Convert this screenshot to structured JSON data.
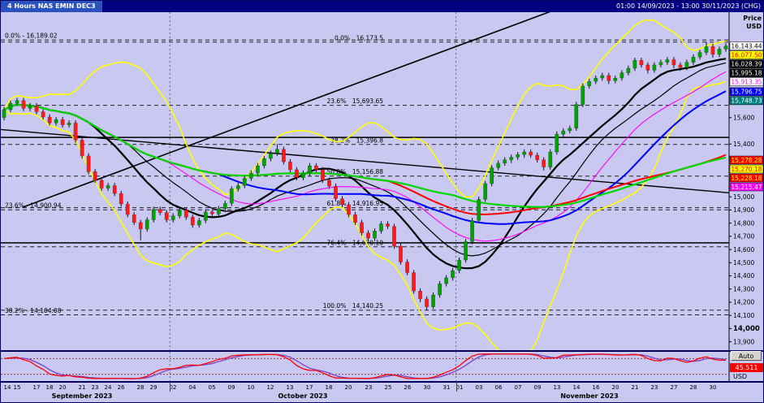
{
  "header": {
    "title": "4 Hours NAS EMIN DEC3",
    "range": "01:00 14/09/2023 - 13:00 30/11/2023 (CHG)"
  },
  "price_axis_title": {
    "line1": "Price",
    "line2": "USD"
  },
  "controls": {
    "auto_label": "Auto",
    "osc_value": "45.511",
    "osc_unit": "USD"
  },
  "colors": {
    "bg": "#c8c8f0",
    "header_bg": "#000080",
    "header_title_bg": "#2a52be",
    "up": "#00a000",
    "down": "#ff1a1a",
    "wick": "#111111",
    "bollinger": "#ffff00",
    "separator": "#000060",
    "axis_line": "#000000",
    "divider": "#666666",
    "fib_line": "#222222",
    "osc_k": "#ff0000",
    "osc_d": "#7744cc",
    "osc_level": "#993333"
  },
  "chart_data": {
    "type": "candlestick",
    "symbol": "NAS EMIN DEC3",
    "timeframe": "4 Hours",
    "price_range": [
      13830,
      16400
    ],
    "bars": [
      [
        15600,
        15680,
        15580,
        15660
      ],
      [
        15660,
        15730,
        15640,
        15710
      ],
      [
        15710,
        15750,
        15690,
        15730
      ],
      [
        15730,
        15750,
        15650,
        15670
      ],
      [
        15670,
        15710,
        15650,
        15690
      ],
      [
        15690,
        15710,
        15625,
        15645
      ],
      [
        15645,
        15665,
        15585,
        15605
      ],
      [
        15605,
        15625,
        15540,
        15560
      ],
      [
        15560,
        15605,
        15540,
        15585
      ],
      [
        15585,
        15605,
        15525,
        15545
      ],
      [
        15545,
        15580,
        15525,
        15560
      ],
      [
        15560,
        15580,
        15410,
        15430
      ],
      [
        15430,
        15450,
        15290,
        15310
      ],
      [
        15310,
        15330,
        15170,
        15190
      ],
      [
        15190,
        15210,
        15105,
        15125
      ],
      [
        15125,
        15145,
        15045,
        15065
      ],
      [
        15065,
        15105,
        15045,
        15085
      ],
      [
        15085,
        15105,
        15005,
        15025
      ],
      [
        15025,
        15045,
        14925,
        14945
      ],
      [
        14945,
        14965,
        14845,
        14865
      ],
      [
        14865,
        14885,
        14785,
        14805
      ],
      [
        14805,
        14825,
        14670,
        14755
      ],
      [
        14755,
        14845,
        14735,
        14825
      ],
      [
        14825,
        14925,
        14805,
        14905
      ],
      [
        14905,
        14925,
        14860,
        14880
      ],
      [
        14880,
        14900,
        14805,
        14825
      ],
      [
        14825,
        14875,
        14805,
        14855
      ],
      [
        14855,
        14920,
        14835,
        14900
      ],
      [
        14900,
        14920,
        14825,
        14845
      ],
      [
        14845,
        14865,
        14765,
        14785
      ],
      [
        14785,
        14840,
        14765,
        14820
      ],
      [
        14820,
        14905,
        14800,
        14885
      ],
      [
        14885,
        14905,
        14850,
        14870
      ],
      [
        14870,
        14930,
        14850,
        14910
      ],
      [
        14910,
        14970,
        14890,
        14950
      ],
      [
        14950,
        15080,
        14930,
        15060
      ],
      [
        15060,
        15105,
        15040,
        15085
      ],
      [
        15085,
        15160,
        15065,
        15140
      ],
      [
        15140,
        15200,
        15120,
        15180
      ],
      [
        15180,
        15255,
        15160,
        15235
      ],
      [
        15235,
        15310,
        15215,
        15290
      ],
      [
        15290,
        15350,
        15270,
        15330
      ],
      [
        15330,
        15400,
        15310,
        15360
      ],
      [
        15360,
        15380,
        15245,
        15265
      ],
      [
        15265,
        15285,
        15185,
        15205
      ],
      [
        15205,
        15225,
        15125,
        15145
      ],
      [
        15145,
        15200,
        15125,
        15180
      ],
      [
        15180,
        15255,
        15160,
        15235
      ],
      [
        15235,
        15255,
        15185,
        15205
      ],
      [
        15205,
        15225,
        15105,
        15125
      ],
      [
        15125,
        15145,
        15060,
        15080
      ],
      [
        15080,
        15100,
        14965,
        14985
      ],
      [
        14985,
        15005,
        14920,
        14940
      ],
      [
        14940,
        14960,
        14845,
        14865
      ],
      [
        14865,
        14885,
        14785,
        14805
      ],
      [
        14805,
        14825,
        14705,
        14725
      ],
      [
        14725,
        14745,
        14665,
        14685
      ],
      [
        14685,
        14760,
        14665,
        14740
      ],
      [
        14740,
        14815,
        14720,
        14795
      ],
      [
        14795,
        14815,
        14755,
        14775
      ],
      [
        14775,
        14795,
        14605,
        14625
      ],
      [
        14625,
        14645,
        14485,
        14505
      ],
      [
        14505,
        14525,
        14405,
        14425
      ],
      [
        14425,
        14445,
        14265,
        14285
      ],
      [
        14285,
        14305,
        14200,
        14225
      ],
      [
        14225,
        14245,
        14140.25,
        14165
      ],
      [
        14165,
        14275,
        14150,
        14255
      ],
      [
        14255,
        14360,
        14235,
        14340
      ],
      [
        14340,
        14405,
        14320,
        14385
      ],
      [
        14385,
        14460,
        14365,
        14440
      ],
      [
        14440,
        14540,
        14420,
        14520
      ],
      [
        14520,
        14680,
        14500,
        14660
      ],
      [
        14660,
        14840,
        14640,
        14820
      ],
      [
        14820,
        15000,
        14800,
        14980
      ],
      [
        14980,
        15120,
        14960,
        15100
      ],
      [
        15100,
        15240,
        15080,
        15220
      ],
      [
        15220,
        15275,
        15200,
        15255
      ],
      [
        15255,
        15300,
        15235,
        15280
      ],
      [
        15280,
        15320,
        15255,
        15300
      ],
      [
        15300,
        15340,
        15280,
        15320
      ],
      [
        15320,
        15360,
        15295,
        15340
      ],
      [
        15340,
        15360,
        15295,
        15315
      ],
      [
        15315,
        15335,
        15260,
        15280
      ],
      [
        15280,
        15300,
        15200,
        15225
      ],
      [
        15225,
        15360,
        15205,
        15340
      ],
      [
        15340,
        15495,
        15320,
        15475
      ],
      [
        15475,
        15520,
        15455,
        15500
      ],
      [
        15500,
        15540,
        15480,
        15520
      ],
      [
        15520,
        15720,
        15500,
        15700
      ],
      [
        15700,
        15860,
        15680,
        15840
      ],
      [
        15840,
        15895,
        15820,
        15875
      ],
      [
        15875,
        15920,
        15855,
        15900
      ],
      [
        15900,
        15940,
        15880,
        15920
      ],
      [
        15920,
        15940,
        15855,
        15880
      ],
      [
        15880,
        15920,
        15860,
        15900
      ],
      [
        15900,
        15960,
        15880,
        15940
      ],
      [
        15940,
        15995,
        15920,
        15975
      ],
      [
        15975,
        16055,
        15955,
        16035
      ],
      [
        16035,
        16055,
        15980,
        16000
      ],
      [
        16000,
        16020,
        15935,
        15960
      ],
      [
        15960,
        16020,
        15940,
        16000
      ],
      [
        16000,
        16040,
        15980,
        16020
      ],
      [
        16020,
        16060,
        16000,
        16040
      ],
      [
        16040,
        16060,
        15975,
        16000
      ],
      [
        16000,
        16020,
        15955,
        15980
      ],
      [
        15980,
        16040,
        15960,
        16020
      ],
      [
        16020,
        16080,
        16000,
        16060
      ],
      [
        16060,
        16115,
        16040,
        16095
      ],
      [
        16095,
        16173.5,
        16075,
        16140
      ],
      [
        16140,
        16160,
        16055,
        16080
      ],
      [
        16080,
        16140,
        16060,
        16120
      ],
      [
        16120,
        16165,
        16100,
        16143.44
      ]
    ],
    "x_labels": [
      [
        0,
        "14"
      ],
      [
        2,
        "15"
      ],
      [
        5,
        "17"
      ],
      [
        7,
        "18"
      ],
      [
        9,
        "20"
      ],
      [
        12,
        "21"
      ],
      [
        14,
        "23"
      ],
      [
        16,
        "24"
      ],
      [
        18,
        "26"
      ],
      [
        21,
        "28"
      ],
      [
        23,
        "29"
      ],
      [
        26,
        "02"
      ],
      [
        29,
        "04"
      ],
      [
        32,
        "05"
      ],
      [
        35,
        "09"
      ],
      [
        38,
        "10"
      ],
      [
        41,
        "12"
      ],
      [
        44,
        "13"
      ],
      [
        47,
        "17"
      ],
      [
        50,
        "18"
      ],
      [
        53,
        "20"
      ],
      [
        56,
        "23"
      ],
      [
        59,
        "25"
      ],
      [
        62,
        "26"
      ],
      [
        65,
        "30"
      ],
      [
        68,
        "31"
      ],
      [
        70,
        "01"
      ],
      [
        73,
        "03"
      ],
      [
        76,
        "06"
      ],
      [
        79,
        "07"
      ],
      [
        82,
        "09"
      ],
      [
        85,
        "13"
      ],
      [
        88,
        "14"
      ],
      [
        91,
        "16"
      ],
      [
        94,
        "20"
      ],
      [
        97,
        "21"
      ],
      [
        100,
        "23"
      ],
      [
        103,
        "27"
      ],
      [
        106,
        "28"
      ],
      [
        109,
        "30"
      ]
    ],
    "month_labels": [
      [
        12,
        "September 2023"
      ],
      [
        46,
        "October 2023"
      ],
      [
        90,
        "November 2023"
      ]
    ],
    "month_dividers": [
      26,
      70
    ],
    "price_axis_ticks": [
      15600,
      15400,
      15000,
      14900,
      14800,
      14700,
      14600,
      14500,
      14400,
      14300,
      14200,
      14100,
      14000,
      13900
    ],
    "bold_tick": 14000,
    "price_boxes": [
      {
        "value": "16,143.44",
        "bg": "#ffffff",
        "fg": "#000000"
      },
      {
        "value": "16,077.50",
        "bg": "#ffff00",
        "fg": "#ff0000"
      },
      {
        "value": "16,028.39",
        "bg": "#000000",
        "fg": "#ffffff"
      },
      {
        "value": "15,995.18",
        "bg": "#000000",
        "fg": "#ffffff"
      },
      {
        "value": "15,913.35",
        "bg": "#ffffff",
        "fg": "#ff00ff"
      },
      {
        "value": "15,796.75",
        "bg": "#0000ff",
        "fg": "#ffffff"
      },
      {
        "value": "15,748.73",
        "bg": "#008080",
        "fg": "#ffffff"
      },
      {
        "value": "15,278.28",
        "bg": "#ff0000",
        "fg": "#ffff00"
      },
      {
        "value": "15,270.18",
        "bg": "#ffff00",
        "fg": "#ff0000"
      },
      {
        "value": "15,228.18",
        "bg": "#ff0000",
        "fg": "#ffff00"
      },
      {
        "value": "15,215.47",
        "bg": "#ff00ff",
        "fg": "#ffffff"
      }
    ],
    "fib_main": [
      {
        "pct": "0.0%",
        "price": 16173.5,
        "label": "16,173.5"
      },
      {
        "pct": "23.6%",
        "price": 15693.65,
        "label": "15,693.65"
      },
      {
        "pct": "38.2%",
        "price": 15396.8,
        "label": "15,396.8"
      },
      {
        "pct": "50.0%",
        "price": 15156.88,
        "label": "15,156.88"
      },
      {
        "pct": "61.8%",
        "price": 14916.95,
        "label": "14,916.95"
      },
      {
        "pct": "76.4%",
        "price": 14620.1,
        "label": "14,620.10"
      },
      {
        "pct": "100.0%",
        "price": 14140.25,
        "label": "14,140.25"
      }
    ],
    "fib_left": [
      {
        "pct": "0.0%",
        "price": 16189.02,
        "label": "16,189.02"
      },
      {
        "pct": "23.6%",
        "price": 14900.94,
        "label": "14,900.94"
      },
      {
        "pct": "38.2%",
        "price": 14104.08,
        "label": "14,104.08"
      }
    ],
    "hlines": [
      15450,
      14650
    ],
    "trendlines": [
      {
        "x1": 0.03,
        "p1": 14920,
        "x2": 0.85,
        "p2": 16600,
        "w": 1.6
      },
      {
        "x1": 0.0,
        "p1": 15510,
        "x2": 1.0,
        "p2": 15030,
        "w": 1.4
      }
    ],
    "indicators": {
      "bollinger": {
        "period": 18,
        "mult": 2.3,
        "width": 1.6
      },
      "mas": [
        {
          "period": 14,
          "color": "#000000",
          "width": 2.2
        },
        {
          "period": 20,
          "color": "#000000",
          "width": 1.2
        },
        {
          "period": 26,
          "color": "#ff00ff",
          "width": 1.1
        },
        {
          "period": 34,
          "color": "#0000ff",
          "width": 2.0
        },
        {
          "period": 60,
          "color": "#ff0000",
          "width": 2.0
        },
        {
          "period": 70,
          "color": "#00d800",
          "width": 2.2
        }
      ]
    },
    "oscillator": {
      "k_period": 10,
      "smooth": 3,
      "d_period": 3,
      "levels": [
        80,
        20
      ]
    }
  }
}
